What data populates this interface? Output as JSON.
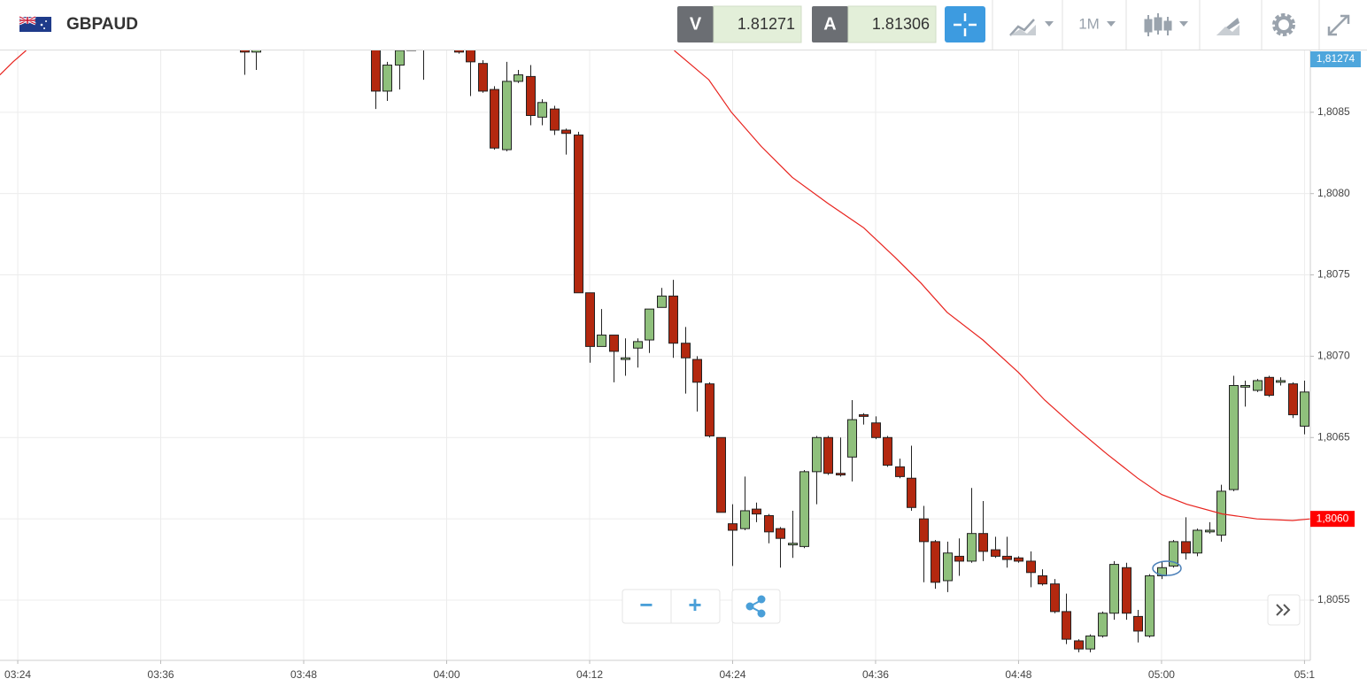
{
  "toolbar": {
    "symbol": "GBPAUD",
    "bid_label": "V",
    "bid": "1.81271",
    "ask_label": "A",
    "ask": "1.81306",
    "timeframe": "1M"
  },
  "controls": {
    "zoom_out": "−",
    "zoom_in": "+"
  },
  "chart_data": {
    "type": "candlestick",
    "x": [
      223,
      224,
      234,
      235,
      236,
      237,
      238,
      241,
      242,
      243,
      244,
      245,
      246,
      247,
      248,
      249,
      250,
      251,
      252,
      253,
      254,
      255,
      256,
      257,
      258,
      259,
      260,
      261,
      262,
      263,
      264,
      265,
      266,
      267,
      268,
      269,
      270,
      271,
      272,
      273,
      274,
      275,
      276,
      277,
      278,
      279,
      280,
      281,
      282,
      283,
      284,
      285,
      286,
      287,
      288,
      289,
      290,
      291,
      292,
      293,
      294,
      295,
      296,
      297,
      298,
      299,
      300,
      301,
      302,
      303,
      304,
      305,
      306,
      307,
      308,
      309,
      310,
      311,
      312
    ],
    "open": [
      1.80891,
      1.80887,
      1.80892,
      1.80863,
      1.80879,
      1.80888,
      1.80893,
      1.80893,
      1.80891,
      1.8088,
      1.80864,
      1.80827,
      1.80869,
      1.80872,
      1.80847,
      1.80852,
      1.80839,
      1.80836,
      1.80739,
      1.80706,
      1.80713,
      1.80698,
      1.80705,
      1.8071,
      1.8073,
      1.80737,
      1.80708,
      1.80698,
      1.80683,
      1.8065,
      1.80597,
      1.80594,
      1.80606,
      1.80602,
      1.80594,
      1.80584,
      1.80583,
      1.80629,
      1.8065,
      1.80628,
      1.80638,
      1.80664,
      1.80659,
      1.8065,
      1.80632,
      1.80625,
      1.806,
      1.80586,
      1.80562,
      1.80577,
      1.80574,
      1.80591,
      1.80581,
      1.80577,
      1.80576,
      1.80574,
      1.80565,
      1.8056,
      1.80543,
      1.80525,
      1.8052,
      1.80528,
      1.80542,
      1.8057,
      1.8054,
      1.80528,
      1.80565,
      1.80571,
      1.80586,
      1.80579,
      1.80592,
      1.8059,
      1.80618,
      1.80681,
      1.80679,
      1.80687,
      1.80684,
      1.80683,
      1.80657
    ],
    "high": [
      1.80893,
      1.80895,
      1.80896,
      1.80881,
      1.80891,
      1.80895,
      1.80899,
      1.80896,
      1.80895,
      1.80882,
      1.80866,
      1.80881,
      1.80876,
      1.80879,
      1.80858,
      1.80854,
      1.8084,
      1.80838,
      1.80739,
      1.80729,
      1.80713,
      1.80711,
      1.80711,
      1.80729,
      1.80742,
      1.80747,
      1.80718,
      1.807,
      1.80684,
      1.8065,
      1.80609,
      1.80626,
      1.8061,
      1.80603,
      1.80595,
      1.80605,
      1.8063,
      1.80651,
      1.80651,
      1.8065,
      1.80673,
      1.80665,
      1.80663,
      1.80651,
      1.80637,
      1.80645,
      1.80608,
      1.80587,
      1.80586,
      1.80588,
      1.80619,
      1.80611,
      1.80589,
      1.80589,
      1.80577,
      1.8058,
      1.80569,
      1.80563,
      1.80554,
      1.80526,
      1.80529,
      1.80543,
      1.80574,
      1.80573,
      1.80544,
      1.80566,
      1.80574,
      1.80587,
      1.80601,
      1.80594,
      1.80598,
      1.80621,
      1.80688,
      1.80685,
      1.80686,
      1.80688,
      1.80687,
      1.80684,
      1.80685
    ],
    "low": [
      1.80873,
      1.80876,
      1.80852,
      1.80857,
      1.80864,
      1.80888,
      1.8087,
      1.80886,
      1.8086,
      1.80862,
      1.80827,
      1.80826,
      1.80868,
      1.80842,
      1.80842,
      1.80836,
      1.80824,
      1.80739,
      1.80696,
      1.80706,
      1.80684,
      1.80688,
      1.80693,
      1.80702,
      1.8073,
      1.80699,
      1.80677,
      1.80666,
      1.8065,
      1.80604,
      1.80571,
      1.80593,
      1.80598,
      1.80585,
      1.8057,
      1.80576,
      1.80582,
      1.80609,
      1.80627,
      1.80626,
      1.80623,
      1.80658,
      1.80649,
      1.80632,
      1.80625,
      1.80605,
      1.80561,
      1.80557,
      1.80555,
      1.80565,
      1.80573,
      1.80574,
      1.80576,
      1.8057,
      1.80573,
      1.80558,
      1.80559,
      1.80542,
      1.80523,
      1.80518,
      1.80518,
      1.80527,
      1.80538,
      1.80538,
      1.80524,
      1.80527,
      1.80563,
      1.8057,
      1.80575,
      1.80577,
      1.80591,
      1.80586,
      1.80617,
      1.80669,
      1.80678,
      1.80675,
      1.80682,
      1.80662,
      1.80652
    ],
    "close": [
      1.80887,
      1.80892,
      1.80863,
      1.80879,
      1.80888,
      1.80892,
      1.80897,
      1.80887,
      1.80881,
      1.80863,
      1.80828,
      1.80869,
      1.80873,
      1.80848,
      1.80856,
      1.80839,
      1.80837,
      1.80739,
      1.80706,
      1.80713,
      1.80703,
      1.80699,
      1.80709,
      1.80729,
      1.80737,
      1.80708,
      1.80699,
      1.80684,
      1.80651,
      1.80604,
      1.80593,
      1.80605,
      1.80603,
      1.80592,
      1.80588,
      1.80585,
      1.80629,
      1.8065,
      1.80628,
      1.80627,
      1.80661,
      1.80663,
      1.8065,
      1.80633,
      1.80626,
      1.80607,
      1.80586,
      1.80561,
      1.80579,
      1.80574,
      1.80591,
      1.8058,
      1.80577,
      1.80575,
      1.80574,
      1.80567,
      1.8056,
      1.80543,
      1.80526,
      1.8052,
      1.80528,
      1.80542,
      1.80572,
      1.80542,
      1.80531,
      1.80565,
      1.8057,
      1.80586,
      1.80579,
      1.80593,
      1.80593,
      1.80617,
      1.80682,
      1.80682,
      1.80685,
      1.80676,
      1.80685,
      1.80664,
      1.80678
    ],
    "up_color": "#8fc07c",
    "down_color": "#b3280f",
    "moving_average": {
      "color": "#e8231e",
      "x": [
        202.5,
        203.6,
        204.7,
        220,
        259.1,
        262.0,
        263.9,
        266.4,
        269.0,
        272.0,
        275.0,
        277.6,
        279.8,
        282.0,
        285.0,
        288.0,
        290.2,
        292.8,
        295.4,
        298.0,
        300.0,
        302.1,
        305.1,
        308.0,
        311.0,
        312.5
      ],
      "values": [
        1.80873,
        1.80881,
        1.80888,
        null,
        1.80888,
        1.8087,
        1.8085,
        1.80829,
        1.8081,
        1.80794,
        1.80779,
        1.80761,
        1.80745,
        1.80727,
        1.8071,
        1.8069,
        1.80673,
        1.80656,
        1.8064,
        1.80625,
        1.80615,
        1.80609,
        1.80603,
        1.806,
        1.80599,
        1.806
      ],
      "last_label": {
        "value": 1.806,
        "label": "1,8060"
      }
    },
    "price_label": "1,81274",
    "xlim": [
      202.51,
      312.49
    ],
    "ylim": [
      1.80513,
      1.80888
    ],
    "xticks": [
      {
        "value": 204,
        "label": "03:24"
      },
      {
        "value": 216,
        "label": "03:36"
      },
      {
        "value": 228,
        "label": "03:48"
      },
      {
        "value": 240,
        "label": "04:00"
      },
      {
        "value": 252,
        "label": "04:12"
      },
      {
        "value": 264,
        "label": "04:24"
      },
      {
        "value": 276,
        "label": "04:36"
      },
      {
        "value": 288,
        "label": "04:48"
      },
      {
        "value": 300,
        "label": "05:00"
      },
      {
        "value": 312,
        "label": "05:1"
      }
    ],
    "yticks": [
      {
        "value": 1.8055,
        "label": "1,8055"
      },
      {
        "value": 1.806,
        "label": "1,8060"
      },
      {
        "value": 1.8065,
        "label": "1,8065"
      },
      {
        "value": 1.807,
        "label": "1,8070"
      },
      {
        "value": 1.8075,
        "label": "1,8075"
      },
      {
        "value": 1.808,
        "label": "1,8080"
      },
      {
        "value": 1.8085,
        "label": "1,8085"
      }
    ],
    "grid": true
  }
}
